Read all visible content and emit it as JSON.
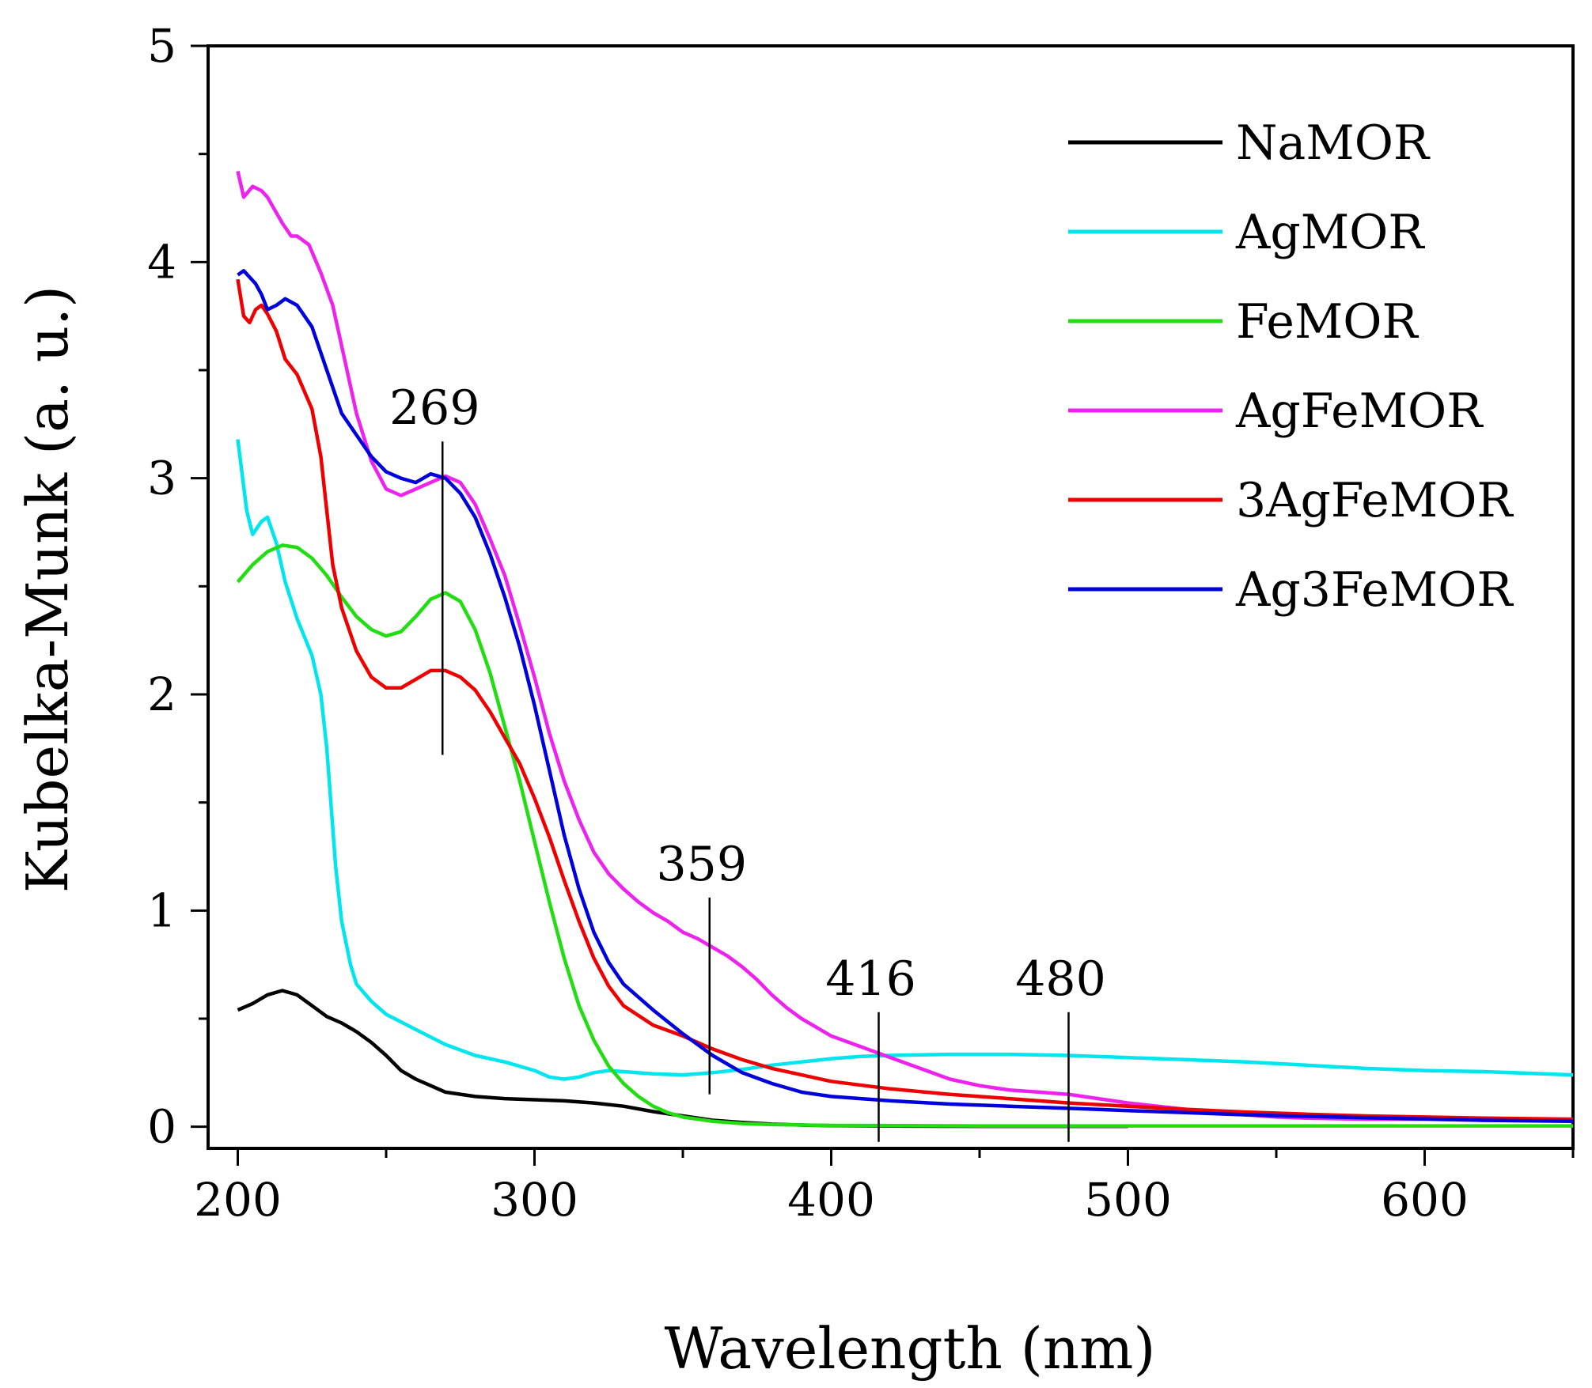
{
  "chart_data": {
    "type": "line",
    "title": "",
    "xlabel": "Wavelength (nm)",
    "ylabel": "Kubelka-Munk (a. u.)",
    "xlim": [
      190,
      650
    ],
    "ylim": [
      -0.1,
      5
    ],
    "xticks": [
      200,
      300,
      400,
      500,
      600
    ],
    "yticks": [
      0,
      1,
      2,
      3,
      4,
      5
    ],
    "grid": false,
    "legend_position": "top-right",
    "series": [
      {
        "name": "NaMOR",
        "color": "#000000",
        "points": [
          [
            200,
            0.54
          ],
          [
            205,
            0.57
          ],
          [
            210,
            0.61
          ],
          [
            215,
            0.63
          ],
          [
            220,
            0.61
          ],
          [
            225,
            0.56
          ],
          [
            230,
            0.51
          ],
          [
            235,
            0.48
          ],
          [
            240,
            0.44
          ],
          [
            245,
            0.39
          ],
          [
            250,
            0.33
          ],
          [
            255,
            0.26
          ],
          [
            260,
            0.22
          ],
          [
            265,
            0.19
          ],
          [
            270,
            0.16
          ],
          [
            280,
            0.14
          ],
          [
            290,
            0.13
          ],
          [
            300,
            0.125
          ],
          [
            310,
            0.12
          ],
          [
            320,
            0.11
          ],
          [
            330,
            0.095
          ],
          [
            340,
            0.07
          ],
          [
            350,
            0.05
          ],
          [
            360,
            0.03
          ],
          [
            370,
            0.02
          ],
          [
            380,
            0.012
          ],
          [
            390,
            0.008
          ],
          [
            400,
            0.005
          ],
          [
            420,
            0.003
          ],
          [
            450,
            0.002
          ],
          [
            500,
            0.002
          ]
        ]
      },
      {
        "name": "AgMOR",
        "color": "#00e5ee",
        "points": [
          [
            200,
            3.18
          ],
          [
            203,
            2.85
          ],
          [
            205,
            2.74
          ],
          [
            208,
            2.8
          ],
          [
            210,
            2.82
          ],
          [
            213,
            2.7
          ],
          [
            216,
            2.52
          ],
          [
            220,
            2.35
          ],
          [
            225,
            2.18
          ],
          [
            228,
            2.0
          ],
          [
            230,
            1.75
          ],
          [
            233,
            1.2
          ],
          [
            235,
            0.95
          ],
          [
            238,
            0.75
          ],
          [
            240,
            0.66
          ],
          [
            245,
            0.58
          ],
          [
            250,
            0.52
          ],
          [
            260,
            0.45
          ],
          [
            270,
            0.38
          ],
          [
            280,
            0.33
          ],
          [
            290,
            0.3
          ],
          [
            300,
            0.26
          ],
          [
            305,
            0.23
          ],
          [
            310,
            0.22
          ],
          [
            315,
            0.23
          ],
          [
            320,
            0.25
          ],
          [
            325,
            0.26
          ],
          [
            330,
            0.255
          ],
          [
            340,
            0.245
          ],
          [
            350,
            0.24
          ],
          [
            360,
            0.25
          ],
          [
            370,
            0.265
          ],
          [
            380,
            0.285
          ],
          [
            390,
            0.3
          ],
          [
            400,
            0.315
          ],
          [
            410,
            0.325
          ],
          [
            420,
            0.33
          ],
          [
            440,
            0.335
          ],
          [
            460,
            0.335
          ],
          [
            480,
            0.33
          ],
          [
            500,
            0.32
          ],
          [
            520,
            0.31
          ],
          [
            540,
            0.3
          ],
          [
            560,
            0.285
          ],
          [
            580,
            0.27
          ],
          [
            600,
            0.26
          ],
          [
            620,
            0.255
          ],
          [
            640,
            0.245
          ],
          [
            650,
            0.24
          ]
        ]
      },
      {
        "name": "FeMOR",
        "color": "#22dd11",
        "points": [
          [
            200,
            2.52
          ],
          [
            205,
            2.6
          ],
          [
            210,
            2.66
          ],
          [
            215,
            2.69
          ],
          [
            220,
            2.68
          ],
          [
            225,
            2.63
          ],
          [
            230,
            2.55
          ],
          [
            235,
            2.45
          ],
          [
            240,
            2.36
          ],
          [
            245,
            2.3
          ],
          [
            250,
            2.27
          ],
          [
            255,
            2.29
          ],
          [
            260,
            2.36
          ],
          [
            265,
            2.44
          ],
          [
            270,
            2.47
          ],
          [
            275,
            2.43
          ],
          [
            280,
            2.3
          ],
          [
            285,
            2.1
          ],
          [
            290,
            1.85
          ],
          [
            295,
            1.6
          ],
          [
            300,
            1.32
          ],
          [
            305,
            1.04
          ],
          [
            310,
            0.78
          ],
          [
            315,
            0.56
          ],
          [
            320,
            0.4
          ],
          [
            325,
            0.28
          ],
          [
            330,
            0.2
          ],
          [
            335,
            0.14
          ],
          [
            340,
            0.095
          ],
          [
            345,
            0.065
          ],
          [
            350,
            0.045
          ],
          [
            360,
            0.025
          ],
          [
            370,
            0.015
          ],
          [
            380,
            0.01
          ],
          [
            400,
            0.006
          ],
          [
            450,
            0.004
          ],
          [
            500,
            0.004
          ],
          [
            650,
            0.004
          ]
        ]
      },
      {
        "name": "AgFeMOR",
        "color": "#ee22ee",
        "points": [
          [
            200,
            4.42
          ],
          [
            202,
            4.3
          ],
          [
            205,
            4.35
          ],
          [
            208,
            4.33
          ],
          [
            210,
            4.3
          ],
          [
            215,
            4.18
          ],
          [
            218,
            4.12
          ],
          [
            220,
            4.12
          ],
          [
            224,
            4.08
          ],
          [
            228,
            3.95
          ],
          [
            232,
            3.8
          ],
          [
            236,
            3.55
          ],
          [
            240,
            3.3
          ],
          [
            245,
            3.08
          ],
          [
            250,
            2.95
          ],
          [
            255,
            2.92
          ],
          [
            260,
            2.95
          ],
          [
            265,
            2.98
          ],
          [
            270,
            3.01
          ],
          [
            275,
            2.98
          ],
          [
            280,
            2.88
          ],
          [
            285,
            2.72
          ],
          [
            290,
            2.55
          ],
          [
            295,
            2.32
          ],
          [
            300,
            2.08
          ],
          [
            305,
            1.82
          ],
          [
            310,
            1.6
          ],
          [
            315,
            1.42
          ],
          [
            320,
            1.27
          ],
          [
            325,
            1.17
          ],
          [
            330,
            1.1
          ],
          [
            335,
            1.04
          ],
          [
            340,
            0.99
          ],
          [
            345,
            0.95
          ],
          [
            350,
            0.9
          ],
          [
            355,
            0.87
          ],
          [
            360,
            0.83
          ],
          [
            365,
            0.79
          ],
          [
            370,
            0.74
          ],
          [
            375,
            0.68
          ],
          [
            380,
            0.61
          ],
          [
            385,
            0.55
          ],
          [
            390,
            0.5
          ],
          [
            395,
            0.46
          ],
          [
            400,
            0.42
          ],
          [
            410,
            0.37
          ],
          [
            420,
            0.32
          ],
          [
            430,
            0.27
          ],
          [
            440,
            0.22
          ],
          [
            450,
            0.19
          ],
          [
            460,
            0.17
          ],
          [
            470,
            0.16
          ],
          [
            480,
            0.15
          ],
          [
            490,
            0.13
          ],
          [
            500,
            0.11
          ],
          [
            510,
            0.095
          ],
          [
            520,
            0.08
          ],
          [
            530,
            0.065
          ],
          [
            540,
            0.055
          ],
          [
            550,
            0.045
          ],
          [
            560,
            0.04
          ],
          [
            580,
            0.035
          ],
          [
            600,
            0.035
          ],
          [
            620,
            0.03
          ],
          [
            650,
            0.03
          ]
        ]
      },
      {
        "name": "3AgFeMOR",
        "color": "#ee0000",
        "points": [
          [
            200,
            3.92
          ],
          [
            202,
            3.75
          ],
          [
            204,
            3.72
          ],
          [
            206,
            3.78
          ],
          [
            208,
            3.8
          ],
          [
            210,
            3.76
          ],
          [
            213,
            3.68
          ],
          [
            216,
            3.55
          ],
          [
            220,
            3.48
          ],
          [
            225,
            3.32
          ],
          [
            228,
            3.1
          ],
          [
            230,
            2.85
          ],
          [
            232,
            2.6
          ],
          [
            235,
            2.4
          ],
          [
            240,
            2.2
          ],
          [
            245,
            2.08
          ],
          [
            250,
            2.03
          ],
          [
            255,
            2.03
          ],
          [
            260,
            2.07
          ],
          [
            265,
            2.11
          ],
          [
            270,
            2.11
          ],
          [
            275,
            2.08
          ],
          [
            280,
            2.02
          ],
          [
            285,
            1.92
          ],
          [
            290,
            1.8
          ],
          [
            295,
            1.68
          ],
          [
            300,
            1.52
          ],
          [
            305,
            1.34
          ],
          [
            310,
            1.14
          ],
          [
            315,
            0.95
          ],
          [
            320,
            0.78
          ],
          [
            325,
            0.65
          ],
          [
            330,
            0.56
          ],
          [
            340,
            0.47
          ],
          [
            350,
            0.42
          ],
          [
            360,
            0.36
          ],
          [
            370,
            0.31
          ],
          [
            380,
            0.27
          ],
          [
            390,
            0.24
          ],
          [
            400,
            0.21
          ],
          [
            420,
            0.175
          ],
          [
            440,
            0.15
          ],
          [
            460,
            0.13
          ],
          [
            480,
            0.11
          ],
          [
            500,
            0.095
          ],
          [
            520,
            0.08
          ],
          [
            540,
            0.068
          ],
          [
            560,
            0.058
          ],
          [
            580,
            0.05
          ],
          [
            600,
            0.045
          ],
          [
            620,
            0.04
          ],
          [
            650,
            0.035
          ]
        ]
      },
      {
        "name": "Ag3FeMOR",
        "color": "#0000dd",
        "points": [
          [
            200,
            3.94
          ],
          [
            202,
            3.96
          ],
          [
            204,
            3.93
          ],
          [
            206,
            3.9
          ],
          [
            208,
            3.85
          ],
          [
            210,
            3.78
          ],
          [
            213,
            3.8
          ],
          [
            216,
            3.83
          ],
          [
            220,
            3.8
          ],
          [
            225,
            3.7
          ],
          [
            230,
            3.5
          ],
          [
            235,
            3.3
          ],
          [
            240,
            3.2
          ],
          [
            245,
            3.1
          ],
          [
            250,
            3.03
          ],
          [
            255,
            3.0
          ],
          [
            260,
            2.98
          ],
          [
            265,
            3.02
          ],
          [
            270,
            3.0
          ],
          [
            275,
            2.93
          ],
          [
            280,
            2.82
          ],
          [
            285,
            2.65
          ],
          [
            290,
            2.45
          ],
          [
            295,
            2.22
          ],
          [
            300,
            1.95
          ],
          [
            305,
            1.65
          ],
          [
            310,
            1.35
          ],
          [
            315,
            1.1
          ],
          [
            320,
            0.9
          ],
          [
            325,
            0.76
          ],
          [
            330,
            0.66
          ],
          [
            340,
            0.54
          ],
          [
            350,
            0.43
          ],
          [
            360,
            0.33
          ],
          [
            370,
            0.25
          ],
          [
            380,
            0.2
          ],
          [
            390,
            0.16
          ],
          [
            400,
            0.14
          ],
          [
            420,
            0.12
          ],
          [
            440,
            0.105
          ],
          [
            460,
            0.095
          ],
          [
            480,
            0.085
          ],
          [
            500,
            0.075
          ],
          [
            520,
            0.065
          ],
          [
            540,
            0.055
          ],
          [
            560,
            0.048
          ],
          [
            580,
            0.042
          ],
          [
            600,
            0.036
          ],
          [
            620,
            0.03
          ],
          [
            650,
            0.025
          ]
        ]
      }
    ],
    "annotations": [
      {
        "label": "269",
        "x": 269,
        "y_from": 1.72,
        "y_to": 3.17
      },
      {
        "label": "359",
        "x": 359,
        "y_from": 0.15,
        "y_to": 1.06
      },
      {
        "label": "416",
        "x": 416,
        "y_from": -0.07,
        "y_to": 0.53
      },
      {
        "label": "480",
        "x": 480,
        "y_from": -0.07,
        "y_to": 0.53
      }
    ]
  }
}
